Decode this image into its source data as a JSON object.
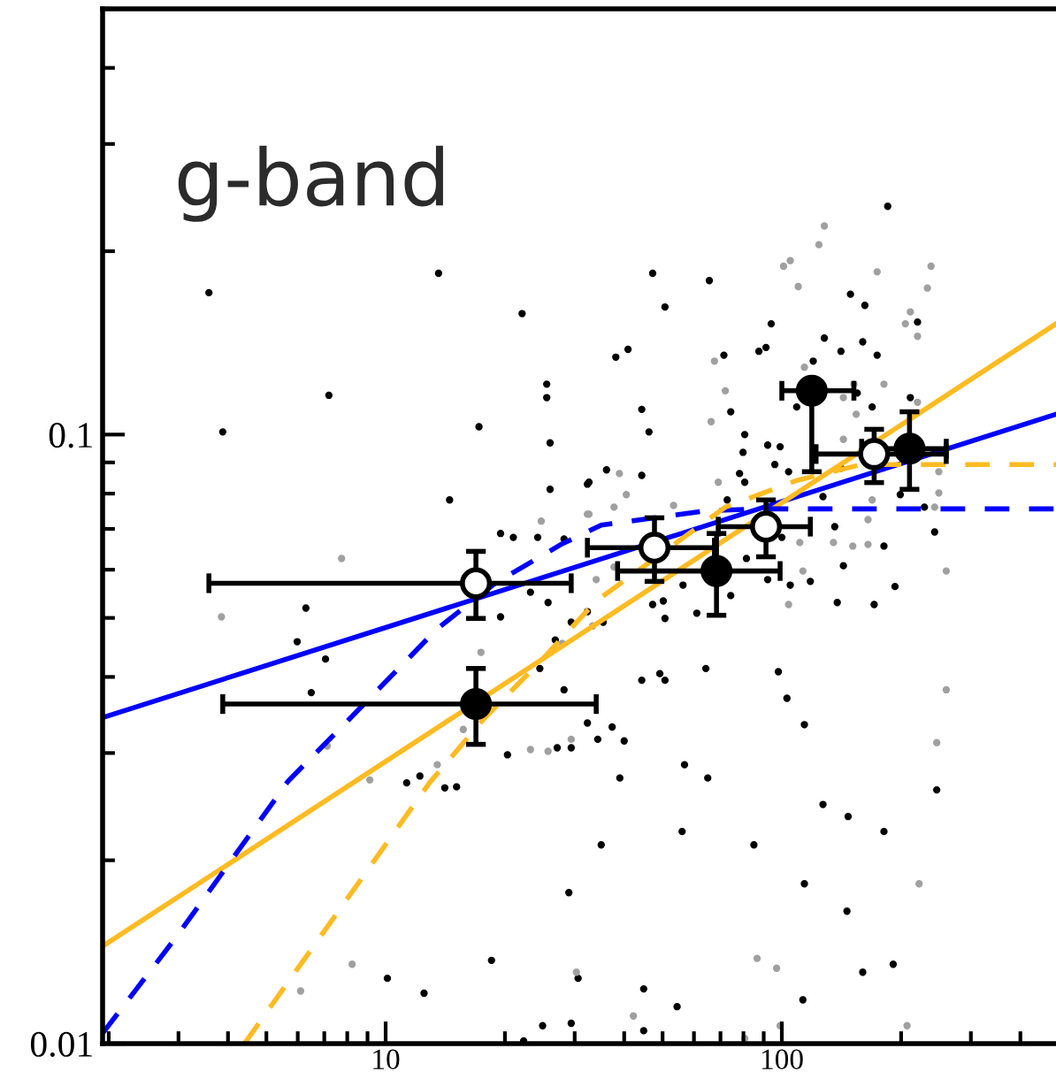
{
  "chart_data": {
    "type": "scatter",
    "title": "g-band",
    "log": "xy",
    "xlim": [
      1.93,
      492
    ],
    "xticks": [
      10,
      100
    ],
    "ylim": [
      0.01,
      0.5
    ],
    "yticks": [
      0.01,
      0.1
    ],
    "grid": false,
    "legend": false,
    "series": [
      {
        "type": "scatter",
        "marker": "circle",
        "color": "#000000",
        "x": [
          3.58,
          3.88,
          7.19,
          13.6,
          22.1,
          17.2,
          14.5,
          25.5,
          25.5,
          26.0,
          26.0,
          47.2,
          50.7,
          38.1,
          40.9,
          44.3,
          46.2,
          32.3,
          36.1,
          19.5,
          21.0,
          24.2,
          28.2,
          23.2,
          25.7,
          19.5,
          6.29,
          5.98,
          7.05,
          6.49,
          29.4,
          35.4,
          26.8,
          24.5,
          28.2,
          32.3,
          37.3,
          34.3,
          40.0,
          27.1,
          29.4,
          20.3,
          11.3,
          12.2,
          14.1,
          47.2,
          50.2,
          50.7,
          44.3,
          49.2,
          50.7,
          56.3,
          61.0,
          56.8,
          64.3,
          185,
          65.6,
          71.4,
          87.5,
          91.2,
          94.0,
          149,
          162,
          128,
          141,
          160,
          174,
          120,
          220,
          74.3,
          80.6,
          79.8,
          92.1,
          96.0,
          99.0,
          109,
          155,
          169,
          211,
          78.2,
          80.6,
          72.8,
          104,
          127,
          199,
          141,
          44.3,
          229,
          243,
          136,
          181,
          143,
          193,
          138,
          171,
          118,
          105,
          92.1,
          81.4,
          100,
          32.6,
          32.3,
          74.3,
          10.1,
          12.5,
          18.5,
          22.3,
          24.9,
          29.4,
          30.6,
          44.8,
          44.8,
          54.4,
          113,
          160,
          98,
          114,
          127,
          147,
          181,
          246,
          65,
          56,
          114,
          146,
          191,
          39,
          35,
          29,
          15.1,
          85,
          103
        ],
        "values": [
          0.171,
          0.101,
          0.116,
          0.184,
          0.158,
          0.103,
          0.0781,
          0.121,
          0.115,
          0.0969,
          0.0813,
          0.184,
          0.162,
          0.134,
          0.138,
          0.11,
          0.101,
          0.0829,
          0.0875,
          0.0688,
          0.0678,
          0.0678,
          0.0674,
          0.0551,
          0.053,
          0.0502,
          0.0519,
          0.0457,
          0.0428,
          0.0377,
          0.0492,
          0.0492,
          0.046,
          0.0413,
          0.0381,
          0.0336,
          0.0331,
          0.0316,
          0.0314,
          0.0306,
          0.0306,
          0.0298,
          0.0268,
          0.0275,
          0.0263,
          0.0526,
          0.0533,
          0.0499,
          0.0395,
          0.0405,
          0.0395,
          0.0566,
          0.0509,
          0.0287,
          0.0413,
          0.237,
          0.179,
          0.135,
          0.137,
          0.139,
          0.152,
          0.17,
          0.163,
          0.144,
          0.137,
          0.142,
          0.135,
          0.132,
          0.153,
          0.109,
          0.1,
          0.0935,
          0.0961,
          0.0893,
          0.0955,
          0.111,
          0.117,
          0.111,
          0.115,
          0.0863,
          0.0835,
          0.0781,
          0.0869,
          0.0791,
          0.0797,
          0.0881,
          0.0857,
          0.076,
          0.0692,
          0.0706,
          0.0656,
          0.0609,
          0.0563,
          0.053,
          0.0526,
          0.0574,
          0.0566,
          0.0578,
          0.0626,
          0.0678,
          0.0835,
          0.0512,
          0.0544,
          0.0128,
          0.0121,
          0.0137,
          0.0101,
          0.0107,
          0.0108,
          0.0128,
          0.0123,
          0.0105,
          0.0115,
          0.0118,
          0.0131,
          0.0408,
          0.0334,
          0.0247,
          0.0236,
          0.0223,
          0.0261,
          0.0273,
          0.0223,
          0.0183,
          0.0165,
          0.0135,
          0.0273,
          0.0212,
          0.0177,
          0.0264,
          0.0212,
          0.0369
        ]
      },
      {
        "type": "scatter",
        "marker": "circle",
        "color": "#a0a0a0",
        "x": [
          7.74,
          3.85,
          17.4,
          15.7,
          7.12,
          9.12,
          13.5,
          23.2,
          25.7,
          29.4,
          27.9,
          33.3,
          34.0,
          24.7,
          32.3,
          38.9,
          40.5,
          37.7,
          53.3,
          128,
          124,
          101,
          105,
          110,
          174,
          238,
          233,
          211,
          205,
          220,
          67.6,
          114,
          72.0,
          66.3,
          152,
          143,
          181,
          220,
          154,
          143,
          169,
          249,
          249,
          243,
          260,
          165,
          135,
          151,
          165,
          111,
          113,
          104,
          69.1,
          32.6,
          37.7,
          8.23,
          6.1,
          30.3,
          42.2,
          80.6,
          86.6,
          97.0,
          99.0,
          207,
          260,
          246,
          222
        ],
        "values": [
          0.0626,
          0.0502,
          0.0439,
          0.0328,
          0.0308,
          0.0271,
          0.0287,
          0.0304,
          0.0302,
          0.0316,
          0.0454,
          0.0485,
          0.0578,
          0.0721,
          0.074,
          0.0863,
          0.0797,
          0.076,
          0.0765,
          0.22,
          0.205,
          0.189,
          0.193,
          0.175,
          0.185,
          0.189,
          0.174,
          0.159,
          0.152,
          0.145,
          0.132,
          0.129,
          0.118,
          0.105,
          0.121,
          0.115,
          0.121,
          0.113,
          0.108,
          0.0982,
          0.0781,
          0.0869,
          0.0802,
          0.076,
          0.0597,
          0.0725,
          0.0665,
          0.0656,
          0.066,
          0.0665,
          0.0597,
          0.0526,
          0.0835,
          0.074,
          0.0606,
          0.0135,
          0.0122,
          0.0131,
          0.0111,
          0.0102,
          0.0138,
          0.0133,
          0.0107,
          0.0107,
          0.0381,
          0.0312,
          0.0183
        ]
      },
      {
        "type": "line",
        "marker": "none",
        "line_style": "solid",
        "color": "#0000ff",
        "x": [
          1.93,
          492
        ],
        "values": [
          0.0343,
          0.108
        ]
      },
      {
        "type": "line",
        "marker": "none",
        "line_style": "solid",
        "color": "#ffbb22",
        "x": [
          1.93,
          492
        ],
        "values": [
          0.01445,
          0.152
        ]
      },
      {
        "type": "line",
        "marker": "none",
        "line_style": "dashed",
        "color": "#0000ff",
        "x": [
          1.93,
          2.97,
          5.68,
          8.06,
          13.5,
          18.9,
          27.7,
          35.0,
          47.7,
          64.9,
          88.4,
          492
        ],
        "values": [
          0.0104,
          0.015,
          0.027,
          0.034,
          0.048,
          0.057,
          0.066,
          0.071,
          0.073,
          0.075,
          0.0755,
          0.0755
        ]
      },
      {
        "type": "line",
        "marker": "none",
        "line_style": "dashed",
        "color": "#ffbb22",
        "x": [
          4.4,
          12.9,
          17.6,
          24.9,
          34.0,
          72.0,
          108.6,
          158.9,
          492
        ],
        "values": [
          0.01,
          0.0268,
          0.034,
          0.0428,
          0.0533,
          0.076,
          0.084,
          0.0893,
          0.0893
        ]
      },
      {
        "type": "scatter",
        "marker": "circle",
        "color": "#ffffff",
        "x": [
          16.9,
          47.7,
          91.2,
          171
        ],
        "values": [
          0.057,
          0.0652,
          0.0706,
          0.0929
        ],
        "errors": [
          [
            0.0499,
            0.0643
          ],
          [
            0.0574,
            0.073
          ],
          [
            0.063,
            0.0781
          ],
          [
            0.0834,
            0.102
          ]
        ],
        "xerrors": [
          [
            3.58,
            29.4
          ],
          [
            32.3,
            67.6
          ],
          [
            69.1,
            118
          ],
          [
            122,
            260
          ]
        ]
      },
      {
        "type": "scatter",
        "marker": "circle",
        "color": "#000000",
        "x": [
          16.9,
          68.4,
          119,
          210
        ],
        "values": [
          0.0361,
          0.0597,
          0.118,
          0.0948
        ],
        "errors": [
          [
            0.031,
            0.0413
          ],
          [
            0.0505,
            0.0688
          ],
          [
            0.0869,
            0.118
          ],
          [
            0.0813,
            0.109
          ]
        ],
        "xerrors": [
          [
            3.88,
            34.0
          ],
          [
            38.5,
            99.0
          ],
          [
            100,
            152
          ],
          [
            159,
            260
          ]
        ]
      }
    ]
  }
}
